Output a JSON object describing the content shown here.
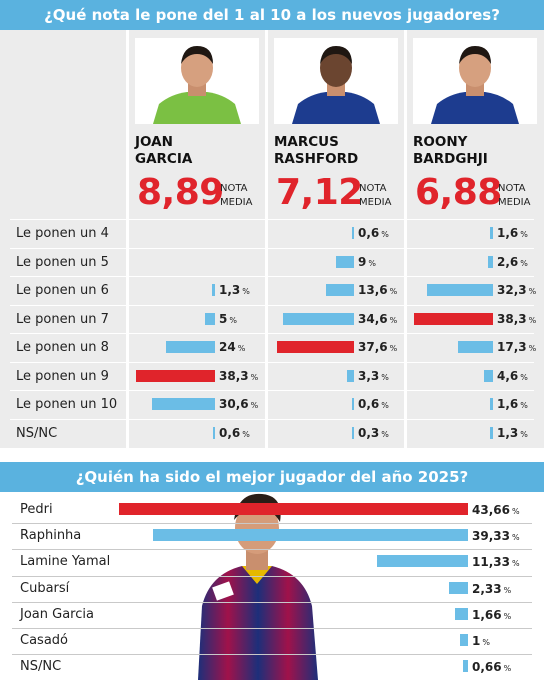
{
  "survey1": {
    "title": "¿Qué nota le pone del 1 al 10 a los nuevos jugadores?",
    "nota_media_label": [
      "NOTA",
      "MEDIA"
    ],
    "percent_sign": "%",
    "row_labels": [
      "Le ponen un 4",
      "Le ponen un 5",
      "Le ponen un 6",
      "Le ponen un 7",
      "Le ponen un 8",
      "Le ponen un 9",
      "Le ponen un 10",
      "NS/NC"
    ],
    "players": [
      {
        "first": "JOAN",
        "last": "GARCIA",
        "rating": "8,89",
        "shirt": "#7bc043",
        "values": [
          null,
          null,
          "1,3",
          "5",
          "24",
          "38,3",
          "30,6",
          "0,6"
        ],
        "numbers": [
          null,
          null,
          1.3,
          5,
          24,
          38.3,
          30.6,
          0.6
        ],
        "highlight": 5
      },
      {
        "first": "MARCUS",
        "last": "RASHFORD",
        "rating": "7,12",
        "shirt": "#1d3c8f",
        "values": [
          "0,6",
          "9",
          "13,6",
          "34,6",
          "37,6",
          "3,3",
          "0,6",
          "0,3"
        ],
        "numbers": [
          0.6,
          9,
          13.6,
          34.6,
          37.6,
          3.3,
          0.6,
          0.3
        ],
        "highlight": 4
      },
      {
        "first": "ROONY",
        "last": "BARDGHJI",
        "rating": "6,88",
        "shirt": "#1d3c8f",
        "values": [
          "1,6",
          "2,6",
          "32,3",
          "38,3",
          "17,3",
          "4,6",
          "1,6",
          "1,3"
        ],
        "numbers": [
          1.6,
          2.6,
          32.3,
          38.3,
          17.3,
          4.6,
          1.6,
          1.3
        ],
        "highlight": 3
      }
    ]
  },
  "survey2": {
    "title": "¿Quién ha sido el mejor jugador del año 2025?",
    "percent_sign": "%",
    "rows": [
      {
        "label": "Pedri",
        "value": "43,66",
        "number": 43.66,
        "highlight": true
      },
      {
        "label": "Raphinha",
        "value": "39,33",
        "number": 39.33,
        "highlight": false
      },
      {
        "label": "Lamine Yamal",
        "value": "11,33",
        "number": 11.33,
        "highlight": false
      },
      {
        "label": "Cubarsí",
        "value": "2,33",
        "number": 2.33,
        "highlight": false
      },
      {
        "label": "Joan Garcia",
        "value": "1,66",
        "number": 1.66,
        "highlight": false
      },
      {
        "label": "Casadó",
        "value": "1",
        "number": 1,
        "highlight": false
      },
      {
        "label": "NS/NC",
        "value": "0,66",
        "number": 0.66,
        "highlight": false
      }
    ]
  },
  "colors": {
    "header": "#5ab2df",
    "bar": "#6bbde6",
    "highlight": "#e0242b",
    "rating": "#e0242b"
  },
  "chart_data": [
    {
      "type": "bar",
      "title": "¿Qué nota le pone del 1 al 10 a los nuevos jugadores?",
      "categories": [
        "Le ponen un 4",
        "Le ponen un 5",
        "Le ponen un 6",
        "Le ponen un 7",
        "Le ponen un 8",
        "Le ponen un 9",
        "Le ponen un 10",
        "NS/NC"
      ],
      "series": [
        {
          "name": "JOAN GARCIA",
          "values": [
            null,
            null,
            1.3,
            5,
            24,
            38.3,
            30.6,
            0.6
          ]
        },
        {
          "name": "MARCUS RASHFORD",
          "values": [
            0.6,
            9,
            13.6,
            34.6,
            37.6,
            3.3,
            0.6,
            0.3
          ]
        },
        {
          "name": "ROONY BARDGHJI",
          "values": [
            1.6,
            2.6,
            32.3,
            38.3,
            17.3,
            4.6,
            1.6,
            1.3
          ]
        }
      ]
    },
    {
      "type": "bar",
      "title": "¿Quién ha sido el mejor jugador del año 2025?",
      "categories": [
        "Pedri",
        "Raphinha",
        "Lamine Yamal",
        "Cubarsí",
        "Joan Garcia",
        "Casadó",
        "NS/NC"
      ],
      "values": [
        43.66,
        39.33,
        11.33,
        2.33,
        1.66,
        1,
        0.66
      ]
    }
  ]
}
